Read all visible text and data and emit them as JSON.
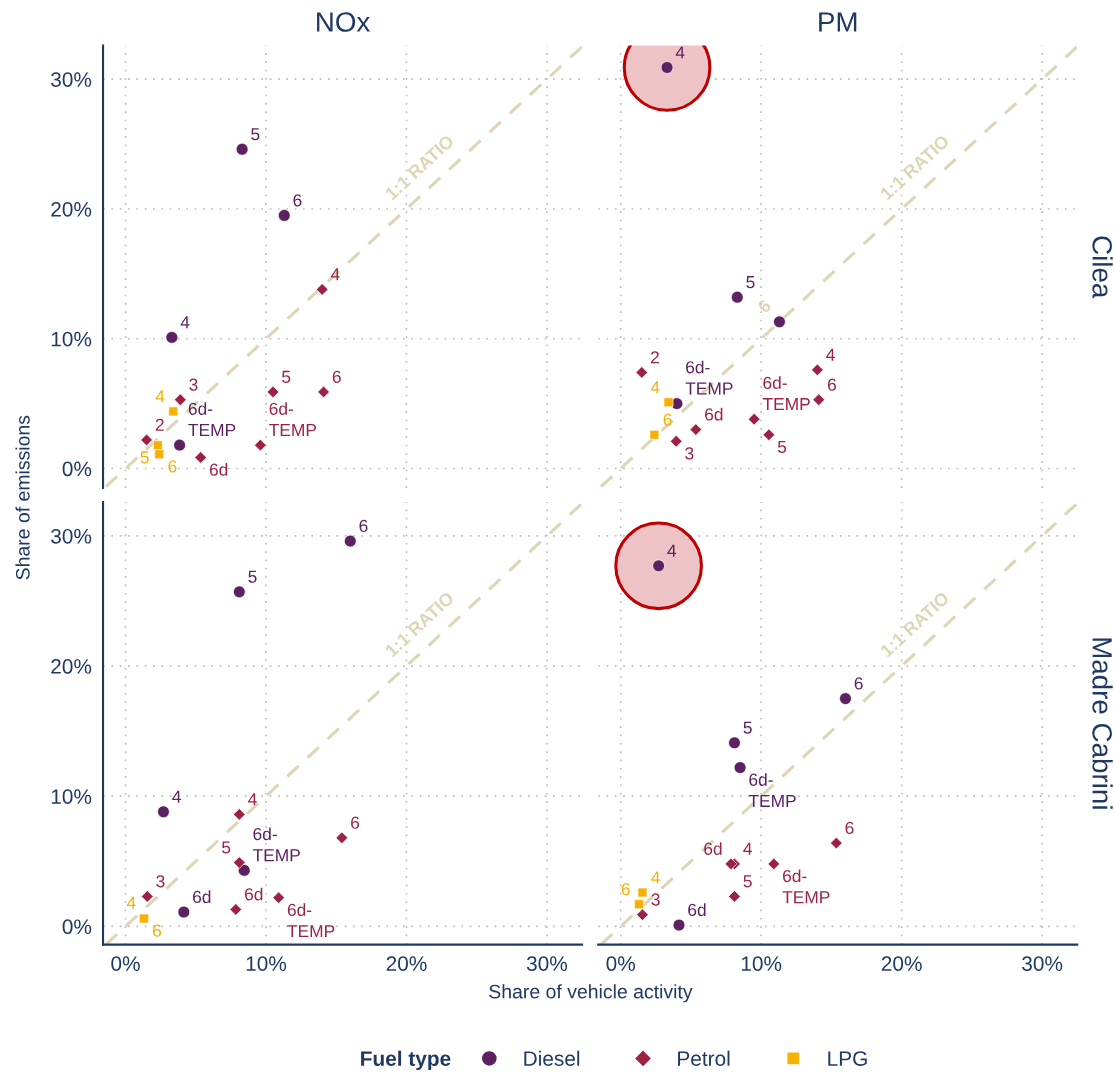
{
  "chart_data": [
    {
      "type": "scatter",
      "title": "NOx",
      "ylabel": "Share of emissions",
      "xlim": [
        -1.6,
        32.5
      ],
      "ylim": [
        -1.5,
        32.6
      ],
      "xticks": [
        {
          "value": 0,
          "label": null
        },
        {
          "value": 10,
          "label": null
        },
        {
          "value": 20,
          "label": null
        },
        {
          "value": 30,
          "label": null
        }
      ],
      "yticks": [
        {
          "value": 0,
          "label": "0%"
        },
        {
          "value": 10,
          "label": "10%"
        },
        {
          "value": 20,
          "label": "20%"
        },
        {
          "value": 30,
          "label": "30%"
        }
      ],
      "grid": true,
      "tick_labels": "y",
      "legend": "bottom",
      "legend_title": "Fuel type",
      "series": [
        {
          "name": "Diesel",
          "color": "#5b2160",
          "marker": "circle",
          "x": [
            8.3,
            11.3,
            3.3,
            3.85
          ],
          "values": [
            24.6,
            19.5,
            10.1,
            1.8
          ]
        },
        {
          "name": "Petrol",
          "color": "#9b2242",
          "marker": "diamond",
          "x": [
            14.0,
            3.9,
            10.5,
            14.1,
            1.5,
            9.6,
            5.35
          ],
          "values": [
            13.8,
            5.3,
            5.9,
            5.9,
            2.2,
            1.8,
            0.85
          ]
        },
        {
          "name": "LPG",
          "color": "#f5b000",
          "marker": "square",
          "x": [
            3.4,
            2.3,
            2.4
          ],
          "values": [
            4.4,
            1.8,
            1.1
          ]
        },
        {
          "type": "line",
          "color": "#ddd5b5",
          "line_style": "dashed",
          "x": [
            -1.4,
            32.5
          ],
          "values": [
            -1.4,
            32.5
          ]
        }
      ],
      "annotations": [
        {
          "text": "1:1 RATIO",
          "x": 22,
          "y": 22
        },
        {
          "text": "5",
          "x": 8.3,
          "y": 24.6
        },
        {
          "text": "6",
          "x": 11.3,
          "y": 19.5
        },
        {
          "text": "4",
          "x": 3.3,
          "y": 10.1
        },
        {
          "text": "6d-\nTEMP",
          "x": 3.85,
          "y": 1.8
        },
        {
          "text": "4",
          "x": 14.0,
          "y": 13.8
        },
        {
          "text": "3",
          "x": 3.9,
          "y": 5.3
        },
        {
          "text": "5",
          "x": 10.5,
          "y": 5.9
        },
        {
          "text": "6",
          "x": 14.1,
          "y": 5.9
        },
        {
          "text": "2",
          "x": 1.5,
          "y": 2.2
        },
        {
          "text": "6d-\nTEMP",
          "x": 9.6,
          "y": 1.8
        },
        {
          "text": "6d",
          "x": 5.35,
          "y": 0.85
        },
        {
          "text": "4",
          "x": 3.4,
          "y": 4.4
        },
        {
          "text": "5",
          "x": 2.3,
          "y": 1.8
        },
        {
          "text": "6",
          "x": 2.4,
          "y": 1.1
        }
      ]
    },
    {
      "type": "scatter",
      "title": "PM",
      "y2label": "Cilea",
      "xlim": [
        -1.6,
        32.5
      ],
      "ylim": [
        -1.5,
        32.6
      ],
      "xticks": [
        {
          "value": 0,
          "label": null
        },
        {
          "value": 10,
          "label": null
        },
        {
          "value": 20,
          "label": null
        },
        {
          "value": 30,
          "label": null
        }
      ],
      "yticks": [
        {
          "value": 0,
          "label": null
        },
        {
          "value": 10,
          "label": null
        },
        {
          "value": 20,
          "label": null
        },
        {
          "value": 30,
          "label": null
        }
      ],
      "grid": true,
      "tick_labels": false,
      "series": [
        {
          "type": "bubble",
          "color": "#eec3c5",
          "x": [
            3.3
          ],
          "values": [
            30.9
          ],
          "sizes": [
            1
          ]
        },
        {
          "color": "#5b2160",
          "marker": "circle",
          "x": [
            3.3,
            8.3,
            11.3,
            4.0
          ],
          "values": [
            30.9,
            13.2,
            11.3,
            5.0
          ]
        },
        {
          "color": "#9b2242",
          "marker": "diamond",
          "x": [
            1.5,
            14.0,
            14.1,
            9.5,
            10.55,
            5.35,
            3.95
          ],
          "values": [
            7.4,
            7.6,
            5.3,
            3.8,
            2.6,
            3.0,
            2.1
          ]
        },
        {
          "color": "#f5b000",
          "marker": "square",
          "x": [
            3.4,
            2.4
          ],
          "values": [
            5.1,
            2.6
          ]
        },
        {
          "type": "line",
          "color": "#ddd5b5",
          "line_style": "dashed",
          "x": [
            -1.4,
            32.5
          ],
          "values": [
            -1.4,
            32.5
          ]
        }
      ],
      "annotations": [
        {
          "text": "1:1 RATIO",
          "x": 22,
          "y": 22
        },
        {
          "text": "4",
          "x": 3.3,
          "y": 30.9
        },
        {
          "text": "5",
          "x": 8.3,
          "y": 13.2
        },
        {
          "text": "6",
          "x": 11.3,
          "y": 11.3
        },
        {
          "text": "6d-\nTEMP",
          "x": 4.0,
          "y": 5.0
        },
        {
          "text": "2",
          "x": 1.5,
          "y": 7.4
        },
        {
          "text": "4",
          "x": 14.0,
          "y": 7.6
        },
        {
          "text": "6",
          "x": 14.1,
          "y": 5.3
        },
        {
          "text": "6d-\nTEMP",
          "x": 9.5,
          "y": 3.8
        },
        {
          "text": "5",
          "x": 10.55,
          "y": 2.6
        },
        {
          "text": "6d",
          "x": 5.35,
          "y": 3.0
        },
        {
          "text": "3",
          "x": 3.95,
          "y": 2.1
        },
        {
          "text": "4",
          "x": 3.4,
          "y": 5.1
        },
        {
          "text": "6",
          "x": 2.4,
          "y": 2.6
        }
      ]
    },
    {
      "type": "scatter",
      "xlabel": "Share of vehicle activity",
      "xlim": [
        -1.6,
        32.5
      ],
      "ylim": [
        -1.4,
        32.6
      ],
      "xticks": [
        {
          "value": 0,
          "label": "0%"
        },
        {
          "value": 10,
          "label": "10%"
        },
        {
          "value": 20,
          "label": "20%"
        },
        {
          "value": 30,
          "label": "30%"
        }
      ],
      "yticks": [
        {
          "value": 0,
          "label": "0%"
        },
        {
          "value": 10,
          "label": "10%"
        },
        {
          "value": 20,
          "label": "20%"
        },
        {
          "value": 30,
          "label": "30%"
        }
      ],
      "grid": true,
      "series": [
        {
          "color": "#5b2160",
          "marker": "circle",
          "x": [
            16.0,
            8.1,
            2.7,
            8.45,
            4.15
          ],
          "values": [
            29.6,
            25.7,
            8.8,
            4.3,
            1.1
          ]
        },
        {
          "color": "#9b2242",
          "marker": "diamond",
          "x": [
            8.1,
            15.4,
            8.1,
            1.55,
            10.9,
            7.85
          ],
          "values": [
            8.6,
            6.8,
            4.9,
            2.3,
            2.2,
            1.3
          ]
        },
        {
          "color": "#f5b000",
          "marker": "square",
          "x": [
            1.35,
            1.3
          ],
          "values": [
            0.65,
            0.6
          ]
        },
        {
          "type": "line",
          "color": "#ddd5b5",
          "line_style": "dashed",
          "x": [
            -1.4,
            32.5
          ],
          "values": [
            -1.4,
            32.5
          ]
        }
      ],
      "annotations": [
        {
          "text": "1:1 RATIO",
          "x": 22,
          "y": 22
        },
        {
          "text": "6",
          "x": 16.0,
          "y": 29.6
        },
        {
          "text": "5",
          "x": 8.1,
          "y": 25.7
        },
        {
          "text": "4",
          "x": 2.7,
          "y": 8.8
        },
        {
          "text": "6d-\nTEMP",
          "x": 8.45,
          "y": 4.3
        },
        {
          "text": "6d",
          "x": 4.15,
          "y": 1.1
        },
        {
          "text": "4",
          "x": 8.1,
          "y": 8.6
        },
        {
          "text": "6",
          "x": 15.4,
          "y": 6.8
        },
        {
          "text": "5",
          "x": 8.1,
          "y": 4.9
        },
        {
          "text": "3",
          "x": 1.55,
          "y": 2.3
        },
        {
          "text": "6d-\nTEMP",
          "x": 10.9,
          "y": 2.2
        },
        {
          "text": "6d",
          "x": 7.85,
          "y": 1.3
        },
        {
          "text": "4",
          "x": 1.35,
          "y": 0.65
        },
        {
          "text": "6",
          "x": 1.3,
          "y": 0.6
        }
      ]
    },
    {
      "type": "scatter",
      "y2label": "Madre Cabrini",
      "xlim": [
        -1.6,
        32.5
      ],
      "ylim": [
        -1.4,
        32.6
      ],
      "xticks": [
        {
          "value": 0,
          "label": "0%"
        },
        {
          "value": 10,
          "label": "10%"
        },
        {
          "value": 20,
          "label": "20%"
        },
        {
          "value": 30,
          "label": "30%"
        }
      ],
      "yticks": [
        {
          "value": 0,
          "label": null
        },
        {
          "value": 10,
          "label": null
        },
        {
          "value": 20,
          "label": null
        },
        {
          "value": 30,
          "label": null
        }
      ],
      "grid": true,
      "tick_labels": "x",
      "series": [
        {
          "type": "bubble",
          "color": "#eec3c5",
          "x": [
            2.7
          ],
          "values": [
            27.7
          ],
          "sizes": [
            1
          ]
        },
        {
          "color": "#5b2160",
          "marker": "circle",
          "x": [
            2.7,
            16.0,
            8.1,
            8.5,
            4.15
          ],
          "values": [
            27.7,
            17.5,
            14.1,
            12.2,
            0.1
          ]
        },
        {
          "color": "#9b2242",
          "marker": "diamond",
          "x": [
            15.35,
            8.1,
            10.9,
            7.85,
            8.1,
            1.55
          ],
          "values": [
            6.4,
            4.8,
            4.8,
            4.8,
            2.3,
            0.9
          ]
        },
        {
          "color": "#f5b000",
          "marker": "square",
          "x": [
            1.55,
            1.3
          ],
          "values": [
            2.6,
            1.7
          ]
        },
        {
          "type": "line",
          "color": "#ddd5b5",
          "line_style": "dashed",
          "x": [
            -1.4,
            32.5
          ],
          "values": [
            -1.4,
            32.5
          ]
        }
      ],
      "annotations": [
        {
          "text": "1:1 RATIO",
          "x": 22,
          "y": 22
        },
        {
          "text": "4",
          "x": 2.7,
          "y": 27.7
        },
        {
          "text": "6",
          "x": 16.0,
          "y": 17.5
        },
        {
          "text": "5",
          "x": 8.1,
          "y": 14.1
        },
        {
          "text": "6d-\nTEMP",
          "x": 8.5,
          "y": 12.2
        },
        {
          "text": "6d",
          "x": 4.15,
          "y": 0.1
        },
        {
          "text": "6",
          "x": 15.35,
          "y": 6.4
        },
        {
          "text": "4",
          "x": 8.1,
          "y": 4.8
        },
        {
          "text": "6d-\nTEMP",
          "x": 10.9,
          "y": 4.8
        },
        {
          "text": "6d",
          "x": 7.85,
          "y": 4.8
        },
        {
          "text": "5",
          "x": 8.1,
          "y": 2.3
        },
        {
          "text": "3",
          "x": 1.55,
          "y": 0.9
        },
        {
          "text": "4",
          "x": 1.55,
          "y": 2.6
        },
        {
          "text": "6",
          "x": 1.3,
          "y": 1.7
        }
      ]
    }
  ]
}
